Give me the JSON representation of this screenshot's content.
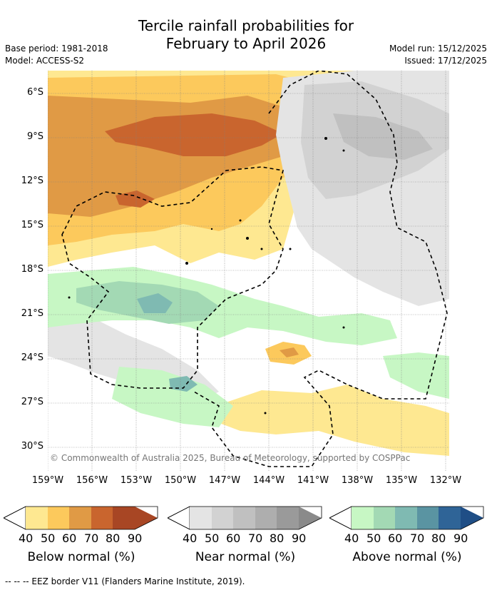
{
  "title_line1": "Tercile rainfall probabilities for",
  "title_line2": "February to April 2026",
  "base_period": "Base period: 1981-2018",
  "model": "Model: ACCESS-S2",
  "model_run": "Model run: 15/12/2025",
  "issued": "Issued: 17/12/2025",
  "copyright": "© Commonwealth of Australia 2025, Bureau of Meteorology, supported by COSPPac",
  "y_ticks": [
    "6°S",
    "9°S",
    "12°S",
    "15°S",
    "18°S",
    "21°S",
    "24°S",
    "27°S",
    "30°S"
  ],
  "x_ticks": [
    "159°W",
    "156°W",
    "153°W",
    "150°W",
    "147°W",
    "144°W",
    "141°W",
    "138°W",
    "135°W",
    "132°W"
  ],
  "legends": [
    {
      "title": "Below normal (%)",
      "labels": [
        "40",
        "50",
        "60",
        "70",
        "80",
        "90"
      ],
      "colors": [
        "#ffffff",
        "#fee891",
        "#fcc95c",
        "#e09a45",
        "#c9652e",
        "#a84624",
        "#a84624"
      ]
    },
    {
      "title": "Near normal (%)",
      "labels": [
        "40",
        "50",
        "60",
        "70",
        "80",
        "90"
      ],
      "colors": [
        "#ffffff",
        "#e4e4e4",
        "#d2d2d2",
        "#c0c0c0",
        "#aeaeae",
        "#9a9a9a",
        "#8a8a8a"
      ]
    },
    {
      "title": "Above normal (%)",
      "labels": [
        "40",
        "50",
        "60",
        "70",
        "80",
        "90"
      ],
      "colors": [
        "#ffffff",
        "#c7f7c4",
        "#a3d9b4",
        "#7fbab2",
        "#5a94a2",
        "#2f6497",
        "#1f4e86"
      ]
    }
  ],
  "footer": "-- -- -- EEZ border V11 (Flanders Marine Institute, 2019).",
  "colors": {
    "below": [
      "#fee891",
      "#fcc95c",
      "#e09a45",
      "#c9652e"
    ],
    "near": [
      "#e4e4e4",
      "#d2d2d2",
      "#c0c0c0"
    ],
    "above": [
      "#c7f7c4",
      "#a3d9b4",
      "#7fbab2"
    ]
  }
}
